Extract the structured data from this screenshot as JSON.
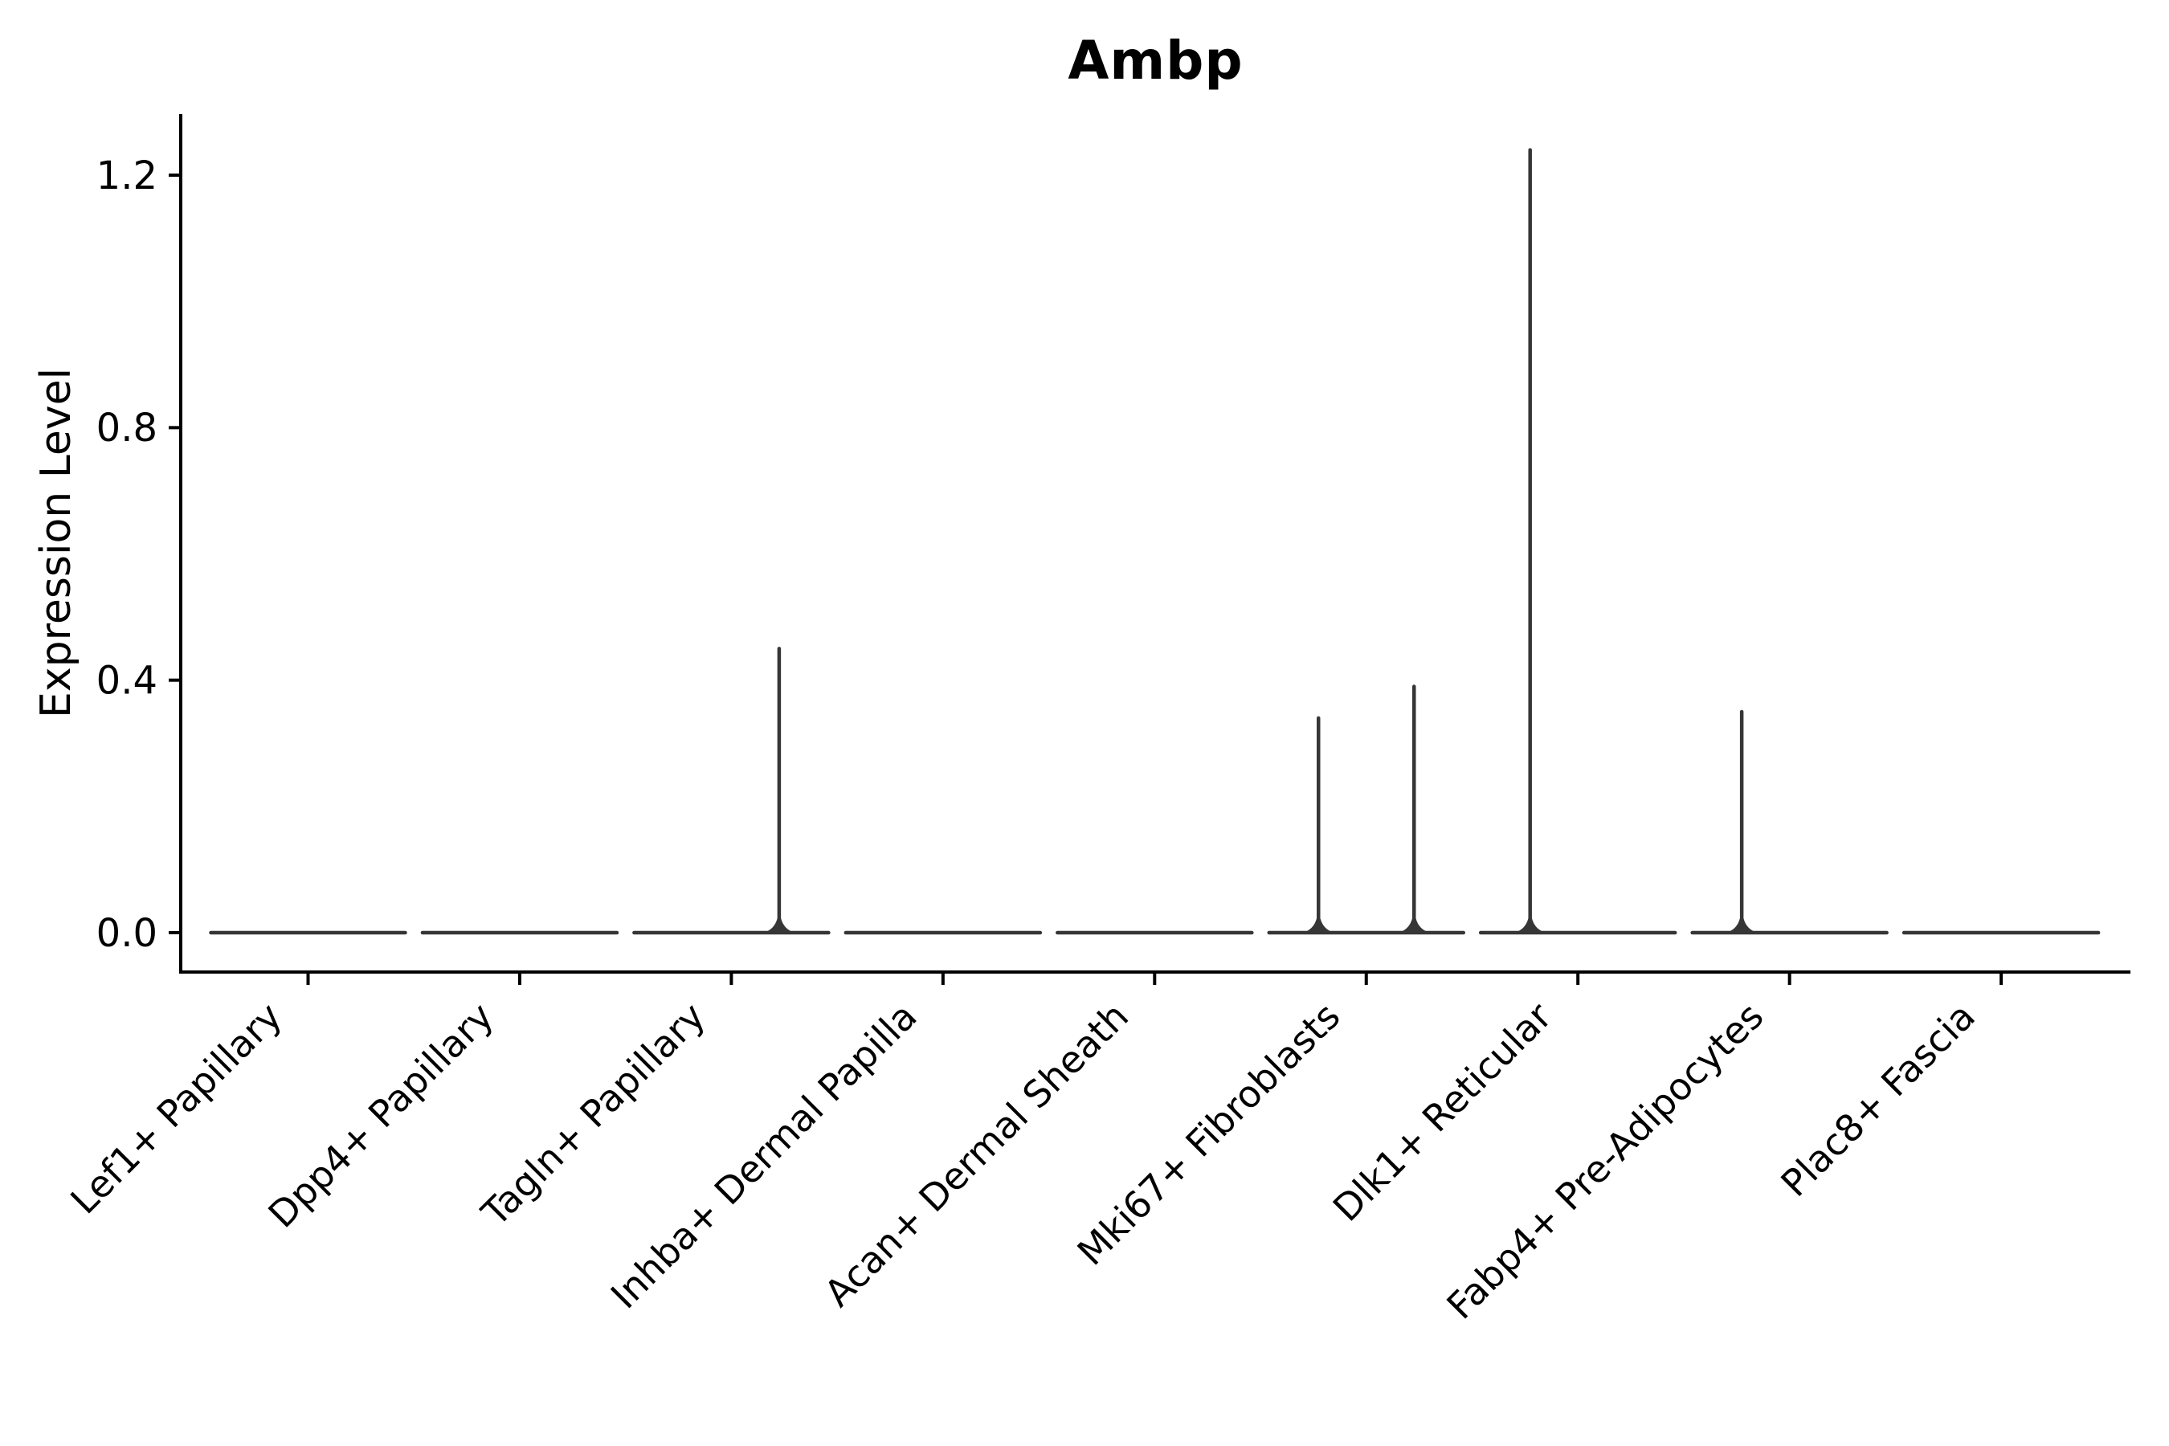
{
  "chart_data": {
    "type": "violin",
    "title": "Ambp",
    "ylabel": "Expression Level",
    "xlabel": "",
    "ytick_labels": [
      "0.0",
      "0.4",
      "0.8",
      "1.2"
    ],
    "ytick_values": [
      0.0,
      0.4,
      0.8,
      1.2
    ],
    "ylim": [
      -0.06,
      1.3
    ],
    "grid": false,
    "legend": null,
    "categories": [
      "Lef1+ Papillary",
      "Dpp4+ Papillary",
      "Tagln+ Papillary",
      "Inhba+ Dermal Papilla",
      "Acan+ Dermal Sheath",
      "Mki67+ Fibroblasts",
      "Dlk1+ Reticular",
      "Fabp4+ Pre-Adipocytes",
      "Plac8+ Fascia"
    ],
    "violins": [
      {
        "label": "Lef1+ Papillary",
        "baseline_value": 0.0,
        "spikes": []
      },
      {
        "label": "Dpp4+ Papillary",
        "baseline_value": 0.0,
        "spikes": []
      },
      {
        "label": "Tagln+ Papillary",
        "baseline_value": 0.0,
        "spikes": [
          {
            "side": "right",
            "value": 0.45
          }
        ]
      },
      {
        "label": "Inhba+ Dermal Papilla",
        "baseline_value": 0.0,
        "spikes": []
      },
      {
        "label": "Acan+ Dermal Sheath",
        "baseline_value": 0.0,
        "spikes": []
      },
      {
        "label": "Mki67+ Fibroblasts",
        "baseline_value": 0.0,
        "spikes": [
          {
            "side": "left",
            "value": 0.34
          },
          {
            "side": "right",
            "value": 0.39
          }
        ]
      },
      {
        "label": "Dlk1+ Reticular",
        "baseline_value": 0.0,
        "spikes": [
          {
            "side": "left",
            "value": 1.24
          }
        ]
      },
      {
        "label": "Fabp4+ Pre-Adipocytes",
        "baseline_value": 0.0,
        "spikes": [
          {
            "side": "left",
            "value": 0.35
          }
        ]
      },
      {
        "label": "Plac8+ Fascia",
        "baseline_value": 0.0,
        "spikes": []
      }
    ],
    "colors": {
      "violin": "#363636",
      "axis": "#000000",
      "text": "#000000",
      "background": "#ffffff"
    }
  }
}
